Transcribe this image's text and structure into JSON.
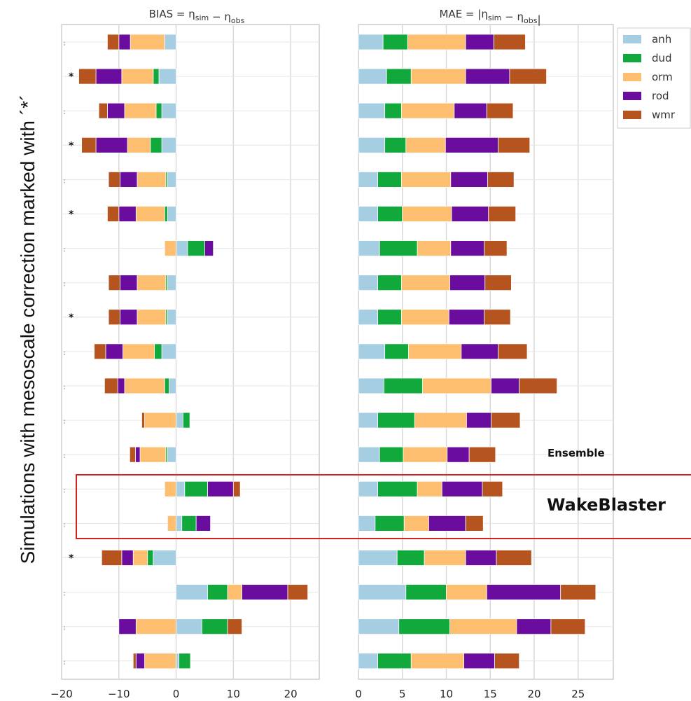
{
  "side_label": "Simulations with mesoscale correction marked with ´*´",
  "annotations": {
    "ensemble": "Ensemble",
    "wakeblaster": "WakeBlaster"
  },
  "colors": {
    "anh": "#a6cee3",
    "dud": "#11a83c",
    "orm": "#fdbf6f",
    "rod": "#6a0d9e",
    "wmr": "#b5541f"
  },
  "star_rows": [
    1,
    3,
    5,
    8,
    15
  ],
  "chart_data": [
    {
      "type": "bar",
      "orientation": "horizontal",
      "stacked": true,
      "title": "BIAS = ηsim − ηobs",
      "xlim": [
        -20,
        25
      ],
      "xticks": [
        -20,
        -10,
        0,
        10,
        20
      ],
      "grid": true,
      "series": [
        {
          "name": "anh",
          "values": [
            -2,
            -3,
            -2.5,
            -2.5,
            -1.5,
            -1.5,
            2,
            -1.5,
            -1.5,
            -2.5,
            -1.2,
            1.2,
            -1.5,
            1.5,
            1,
            -4,
            5.5,
            4.5,
            0.5
          ]
        },
        {
          "name": "dud",
          "values": [
            0,
            -1,
            -1,
            -2,
            -0.3,
            -0.5,
            3,
            -0.3,
            -0.3,
            -1.3,
            -0.8,
            1.2,
            -0.3,
            4,
            2.5,
            -1,
            3.5,
            4.5,
            2
          ]
        },
        {
          "name": "orm",
          "values": [
            -6,
            -5.5,
            -5.5,
            -4,
            -5,
            -5,
            -2,
            -5,
            -5,
            -5.5,
            -7,
            -5.5,
            -4.5,
            -2,
            -1.5,
            -2.5,
            2.5,
            -7,
            -5.5
          ]
        },
        {
          "name": "rod",
          "values": [
            -2,
            -4.5,
            -3,
            -5.5,
            -3,
            -3,
            1.5,
            -3,
            -3,
            -3,
            -1.2,
            0,
            -0.8,
            4.5,
            2.5,
            -2,
            8,
            -3,
            -1.5
          ]
        },
        {
          "name": "wmr",
          "values": [
            -2,
            -3,
            -1.5,
            -2.5,
            -2,
            -2,
            0,
            -2,
            -2,
            -2,
            -2.3,
            -0.5,
            -1,
            1.2,
            0,
            -3.5,
            3.5,
            2.5,
            -0.5
          ]
        }
      ]
    },
    {
      "type": "bar",
      "orientation": "horizontal",
      "stacked": true,
      "title": "MAE = |ηsim − ηobs|",
      "xlim": [
        0,
        29
      ],
      "xticks": [
        0,
        5,
        10,
        15,
        20,
        25
      ],
      "grid": true,
      "legend": "top-right",
      "series": [
        {
          "name": "anh",
          "values": [
            2.8,
            3.2,
            3,
            3,
            2.2,
            2.2,
            2.4,
            2.2,
            2.2,
            3,
            2.9,
            2.2,
            2.4,
            2.2,
            1.9,
            4.4,
            5.4,
            4.6,
            2.2
          ]
        },
        {
          "name": "dud",
          "values": [
            2.8,
            2.8,
            1.9,
            2.4,
            2.7,
            2.8,
            4.3,
            2.7,
            2.7,
            2.7,
            4.4,
            4.2,
            2.7,
            4.5,
            3.3,
            3.1,
            4.6,
            5.8,
            3.8
          ]
        },
        {
          "name": "orm",
          "values": [
            6.6,
            6.2,
            6,
            4.5,
            5.6,
            5.6,
            3.8,
            5.5,
            5.4,
            6,
            7.8,
            5.9,
            5,
            2.8,
            2.8,
            4.7,
            4.6,
            7.6,
            6
          ]
        },
        {
          "name": "rod",
          "values": [
            3.2,
            5,
            3.7,
            6,
            4.2,
            4.2,
            3.8,
            4,
            4,
            4.2,
            3.2,
            2.8,
            2.5,
            4.6,
            4.2,
            3.5,
            8.4,
            3.9,
            3.5
          ]
        },
        {
          "name": "wmr",
          "values": [
            3.6,
            4.2,
            3,
            3.6,
            3,
            3.1,
            2.6,
            3,
            3,
            3.3,
            4.3,
            3.3,
            3,
            2.3,
            2,
            4,
            4,
            3.9,
            2.8
          ]
        }
      ]
    }
  ]
}
